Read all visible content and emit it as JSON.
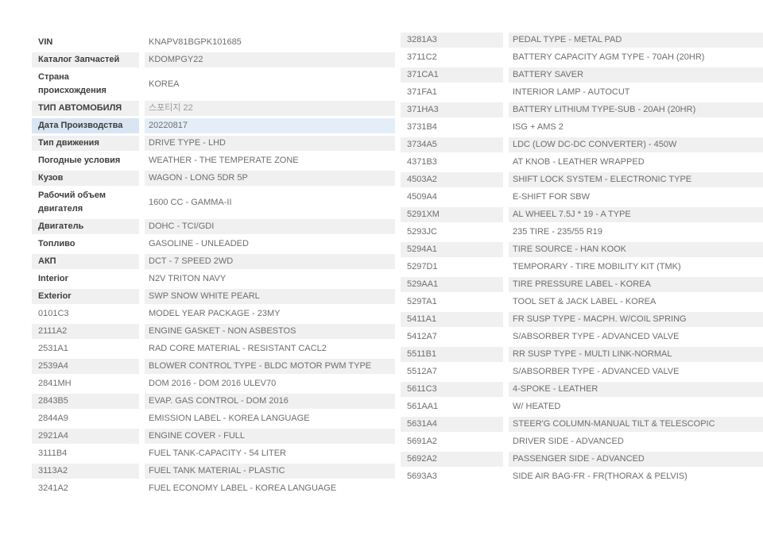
{
  "colors": {
    "page_background": "#ffffff",
    "row_alt_bg": "#f0f0f0",
    "row_white_bg": "#ffffff",
    "highlight_label_bg": "#d9e5f3",
    "highlight_value_bg": "#e4eef9",
    "label_text": "#3d3d3d",
    "value_text": "#6e6e6e",
    "muted_text": "#9b9b9b"
  },
  "left_table": {
    "name": "vehicle-info-table",
    "rows": [
      {
        "label": "VIN",
        "value": "KNAPV81BGPK101685",
        "bold": true,
        "bg": "w"
      },
      {
        "label": "Каталог Запчастей",
        "value": "KDOMPGY22",
        "bold": true,
        "bg": "a"
      },
      {
        "label": "Страна происхождения",
        "value": "KOREA",
        "bold": true,
        "bg": "w"
      },
      {
        "label": "ТИП АВТОМОБИЛЯ",
        "value": "스포티지 22",
        "bold": true,
        "bg": "a",
        "muted": true
      },
      {
        "label": "Дата Производства",
        "value": "20220817",
        "bold": true,
        "bg": "h"
      },
      {
        "label": "Тип движения",
        "value": "DRIVE TYPE - LHD",
        "bold": true,
        "bg": "a"
      },
      {
        "label": "Погодные условия",
        "value": "WEATHER - THE TEMPERATE ZONE",
        "bold": true,
        "bg": "w"
      },
      {
        "label": "Кузов",
        "value": "WAGON - LONG 5DR 5P",
        "bold": true,
        "bg": "a"
      },
      {
        "label": "Рабочий объем двигателя",
        "value": "1600 CC - GAMMA-II",
        "bold": true,
        "bg": "w"
      },
      {
        "label": "Двигатель",
        "value": "DOHC - TCI/GDI",
        "bold": true,
        "bg": "a"
      },
      {
        "label": "Топливо",
        "value": "GASOLINE - UNLEADED",
        "bold": true,
        "bg": "w"
      },
      {
        "label": "АКП",
        "value": "DCT - 7 SPEED 2WD",
        "bold": true,
        "bg": "a"
      },
      {
        "label": "Interior",
        "value": "N2V TRITON NAVY",
        "bold": true,
        "bg": "w"
      },
      {
        "label": "Exterior",
        "value": "SWP SNOW WHITE PEARL",
        "bold": true,
        "bg": "a"
      },
      {
        "label": "0101C3",
        "value": "MODEL YEAR PACKAGE - 23MY",
        "bold": false,
        "bg": "w"
      },
      {
        "label": "2111A2",
        "value": "ENGINE GASKET - NON ASBESTOS",
        "bold": false,
        "bg": "a"
      },
      {
        "label": "2531A1",
        "value": "RAD CORE MATERIAL - RESISTANT CACL2",
        "bold": false,
        "bg": "w"
      },
      {
        "label": "2539A4",
        "value": "BLOWER CONTROL TYPE - BLDC MOTOR PWM TYPE",
        "bold": false,
        "bg": "a"
      },
      {
        "label": "2841MH",
        "value": "DOM 2016 - DOM 2016 ULEV70",
        "bold": false,
        "bg": "w"
      },
      {
        "label": "2843B5",
        "value": "EVAP. GAS CONTROL - DOM 2016",
        "bold": false,
        "bg": "a"
      },
      {
        "label": "2844A9",
        "value": "EMISSION LABEL - KOREA LANGUAGE",
        "bold": false,
        "bg": "w"
      },
      {
        "label": "2921A4",
        "value": "ENGINE COVER - FULL",
        "bold": false,
        "bg": "a"
      },
      {
        "label": "3111B4",
        "value": "FUEL TANK-CAPACITY - 54 LITER",
        "bold": false,
        "bg": "w"
      },
      {
        "label": "3113A2",
        "value": "FUEL TANK MATERIAL - PLASTIC",
        "bold": false,
        "bg": "a"
      },
      {
        "label": "3241A2",
        "value": "FUEL ECONOMY LABEL - KOREA LANGUAGE",
        "bold": false,
        "bg": "w"
      }
    ]
  },
  "right_table": {
    "name": "option-codes-table",
    "rows": [
      {
        "label": "3281A3",
        "value": "PEDAL TYPE - METAL PAD",
        "bold": false,
        "bg": "a"
      },
      {
        "label": "3711C2",
        "value": "BATTERY CAPACITY AGM TYPE - 70AH (20HR)",
        "bold": false,
        "bg": "w"
      },
      {
        "label": "371CA1",
        "value": "BATTERY SAVER",
        "bold": false,
        "bg": "a"
      },
      {
        "label": "371FA1",
        "value": "INTERIOR LAMP - AUTOCUT",
        "bold": false,
        "bg": "w"
      },
      {
        "label": "371HA3",
        "value": "BATTERY LITHIUM TYPE-SUB - 20AH (20HR)",
        "bold": false,
        "bg": "a"
      },
      {
        "label": "3731B4",
        "value": "ISG + AMS 2",
        "bold": false,
        "bg": "w"
      },
      {
        "label": "3734A5",
        "value": "LDC (LOW DC-DC CONVERTER) - 450W",
        "bold": false,
        "bg": "a"
      },
      {
        "label": "4371B3",
        "value": "AT KNOB - LEATHER WRAPPED",
        "bold": false,
        "bg": "w"
      },
      {
        "label": "4503A2",
        "value": "SHIFT LOCK SYSTEM - ELECTRONIC TYPE",
        "bold": false,
        "bg": "a"
      },
      {
        "label": "4509A4",
        "value": "E-SHIFT FOR SBW",
        "bold": false,
        "bg": "w"
      },
      {
        "label": "5291XM",
        "value": "AL WHEEL 7.5J * 19 - A TYPE",
        "bold": false,
        "bg": "a"
      },
      {
        "label": "5293JC",
        "value": "235 TIRE - 235/55 R19",
        "bold": false,
        "bg": "w"
      },
      {
        "label": "5294A1",
        "value": "TIRE SOURCE - HAN KOOK",
        "bold": false,
        "bg": "a"
      },
      {
        "label": "5297D1",
        "value": "TEMPORARY - TIRE MOBILITY KIT (TMK)",
        "bold": false,
        "bg": "w"
      },
      {
        "label": "529AA1",
        "value": "TIRE PRESSURE LABEL - KOREA",
        "bold": false,
        "bg": "a"
      },
      {
        "label": "529TA1",
        "value": "TOOL SET & JACK LABEL - KOREA",
        "bold": false,
        "bg": "w"
      },
      {
        "label": "5411A1",
        "value": "FR SUSP TYPE - MACPH. W/COIL SPRING",
        "bold": false,
        "bg": "a"
      },
      {
        "label": "5412A7",
        "value": "S/ABSORBER TYPE - ADVANCED VALVE",
        "bold": false,
        "bg": "w"
      },
      {
        "label": "5511B1",
        "value": "RR SUSP TYPE - MULTI LINK-NORMAL",
        "bold": false,
        "bg": "a"
      },
      {
        "label": "5512A7",
        "value": "S/ABSORBER TYPE - ADVANCED VALVE",
        "bold": false,
        "bg": "w"
      },
      {
        "label": "5611C3",
        "value": "4-SPOKE - LEATHER",
        "bold": false,
        "bg": "a"
      },
      {
        "label": "561AA1",
        "value": "W/ HEATED",
        "bold": false,
        "bg": "w"
      },
      {
        "label": "5631A4",
        "value": "STEER'G COLUMN-MANUAL TILT & TELESCOPIC",
        "bold": false,
        "bg": "a"
      },
      {
        "label": "5691A2",
        "value": "DRIVER SIDE - ADVANCED",
        "bold": false,
        "bg": "w"
      },
      {
        "label": "5692A2",
        "value": "PASSENGER SIDE - ADVANCED",
        "bold": false,
        "bg": "a"
      },
      {
        "label": "5693A3",
        "value": "SIDE AIR BAG-FR - FR(THORAX & PELVIS)",
        "bold": false,
        "bg": "w"
      }
    ]
  }
}
